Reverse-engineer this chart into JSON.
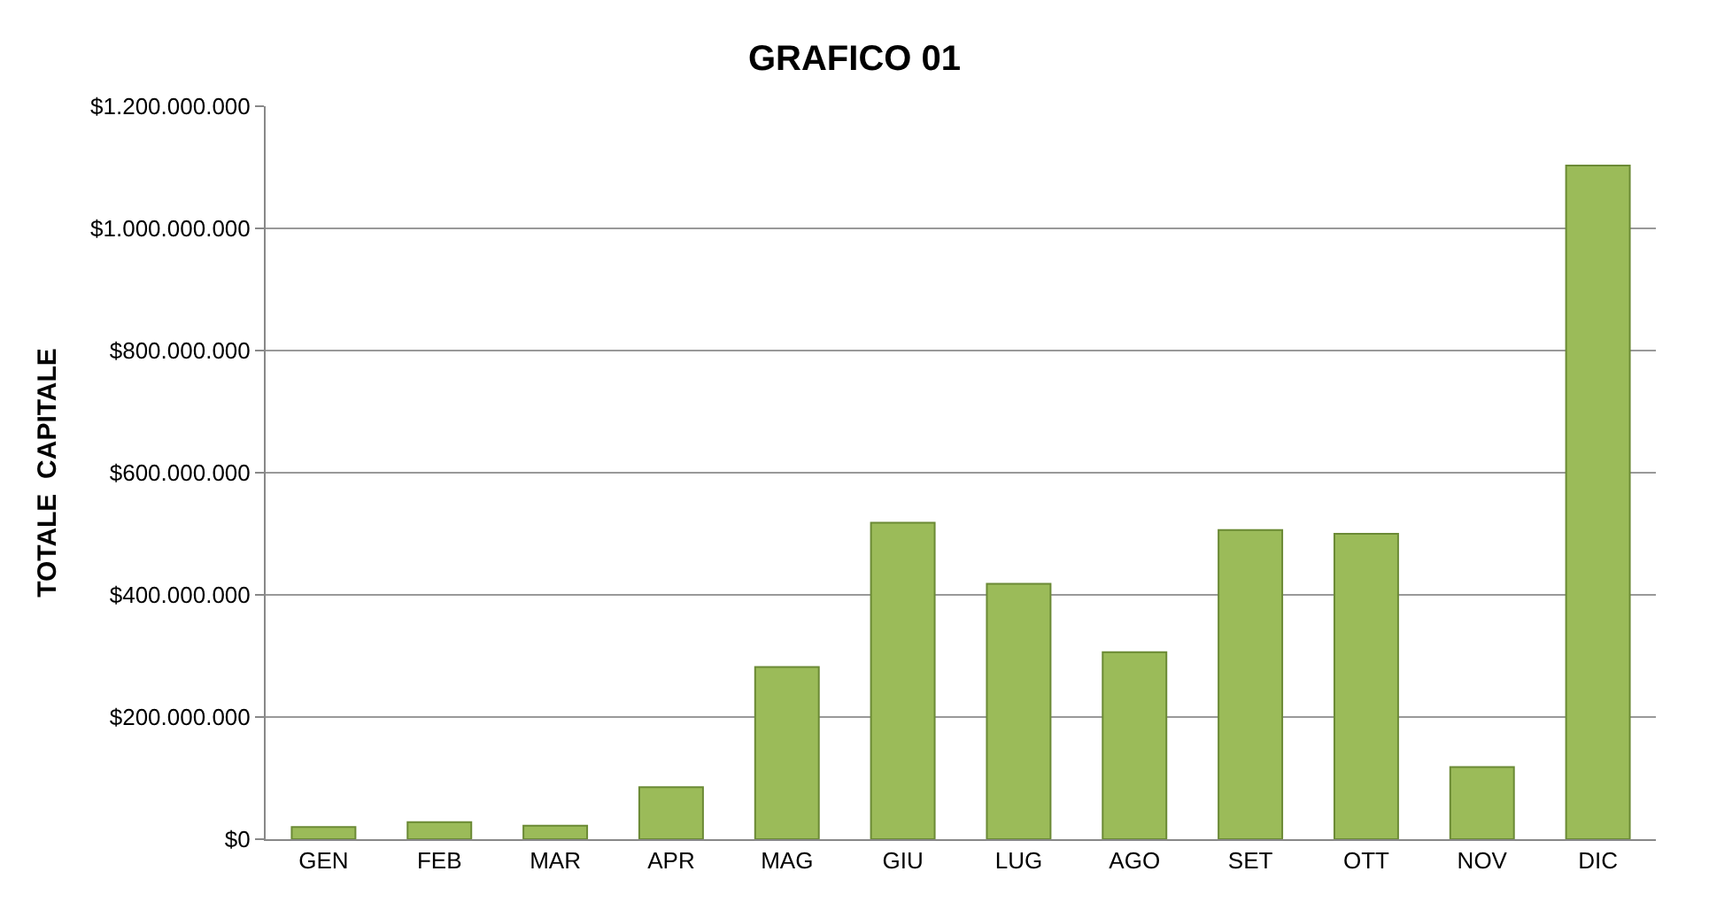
{
  "chart_data": {
    "type": "bar",
    "title": "GRAFICO 01",
    "ylabel": "TOTALE  CAPITALE",
    "categories": [
      "GEN",
      "FEB",
      "MAR",
      "APR",
      "MAG",
      "GIU",
      "LUG",
      "AGO",
      "SET",
      "OTT",
      "NOV",
      "DIC"
    ],
    "values": [
      20000000,
      28000000,
      22000000,
      85000000,
      282000000,
      518000000,
      418000000,
      306000000,
      506000000,
      500000000,
      118000000,
      1103000000
    ],
    "color": "#9bbb59",
    "ylim": [
      0,
      1200000000
    ],
    "yticks": [
      {
        "value": 0,
        "label": "$0"
      },
      {
        "value": 200000000,
        "label": "$200.000.000"
      },
      {
        "value": 400000000,
        "label": "$400.000.000"
      },
      {
        "value": 600000000,
        "label": "$600.000.000"
      },
      {
        "value": 800000000,
        "label": "$800.000.000"
      },
      {
        "value": 1000000000,
        "label": "$1.000.000.000"
      },
      {
        "value": 1200000000,
        "label": "$1.200.000.000"
      }
    ],
    "grid": "y"
  }
}
